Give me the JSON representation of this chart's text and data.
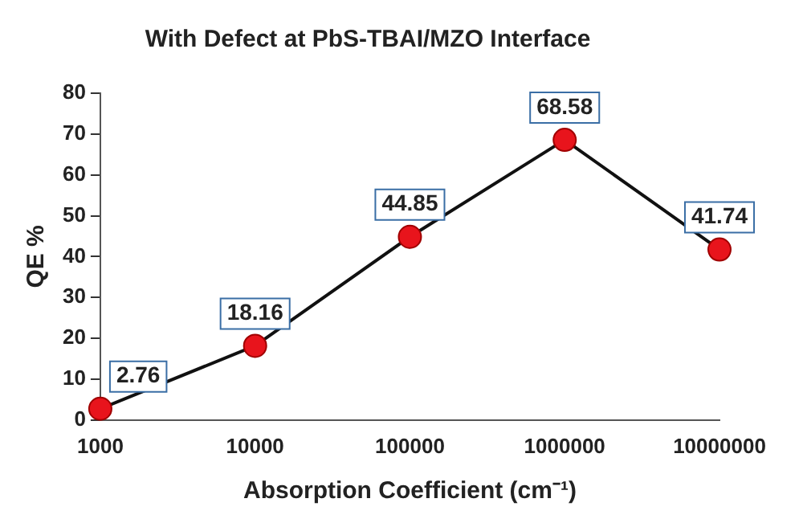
{
  "chart_data": {
    "type": "line",
    "title": "With Defect at PbS-TBAI/MZO Interface",
    "xlabel": "Absorption Coefficient (cm⁻¹)",
    "ylabel": "QE %",
    "x": [
      1000,
      10000,
      100000,
      1000000,
      10000000
    ],
    "series": [
      {
        "color": "#e8141c",
        "values": [
          2.76,
          18.16,
          44.85,
          68.58,
          41.74
        ]
      }
    ],
    "log": "x",
    "xlim": [
      1000,
      10000000
    ],
    "xticks": [
      1000,
      10000,
      100000,
      1000000,
      10000000
    ],
    "ylim": [
      0,
      80
    ],
    "yticks": [
      0,
      10,
      20,
      30,
      40,
      50,
      60,
      70,
      80
    ],
    "grid": false,
    "legend": false,
    "marker": "circle",
    "line_style": "solid",
    "data_labels": true
  }
}
